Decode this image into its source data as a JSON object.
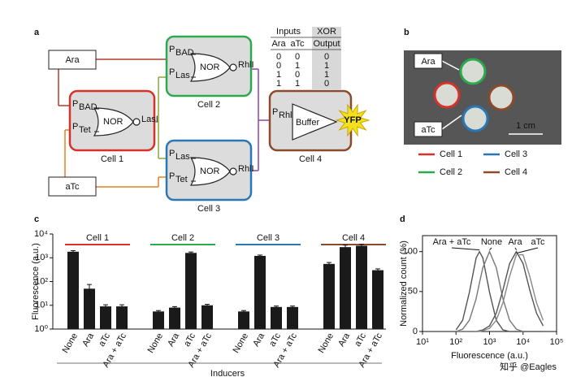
{
  "panel_labels": [
    "a",
    "b",
    "c",
    "d"
  ],
  "diagram": {
    "inputs": [
      "Ara",
      "aTc"
    ],
    "cells": [
      {
        "name": "Cell 1",
        "color": "#d7312a",
        "gate": "NOR",
        "promoters": [
          {
            "p": "P",
            "sub": "BAD"
          },
          {
            "p": "P",
            "sub": "Tet"
          }
        ],
        "output": "LasI"
      },
      {
        "name": "Cell 2",
        "color": "#2ca94f",
        "gate": "NOR",
        "promoters": [
          {
            "p": "P",
            "sub": "BAD"
          },
          {
            "p": "P",
            "sub": "Las"
          }
        ],
        "output": "RhlI"
      },
      {
        "name": "Cell 3",
        "color": "#2a77b5",
        "gate": "NOR",
        "promoters": [
          {
            "p": "P",
            "sub": "Las"
          },
          {
            "p": "P",
            "sub": "Tet"
          }
        ],
        "output": "RhlI"
      },
      {
        "name": "Cell 4",
        "color": "#8b4a2b",
        "gate": "Buffer",
        "promoters": [
          {
            "p": "P",
            "sub": "Rhl"
          }
        ],
        "output": "YFP"
      }
    ],
    "table": {
      "header": [
        "Inputs",
        "XOR"
      ],
      "columns": [
        "Ara",
        "aTc",
        "Output"
      ],
      "rows": [
        [
          "0",
          "0",
          "0"
        ],
        [
          "0",
          "1",
          "1"
        ],
        [
          "1",
          "0",
          "1"
        ],
        [
          "1",
          "1",
          "0"
        ]
      ]
    }
  },
  "photo": {
    "labels": [
      "Ara",
      "aTc"
    ],
    "scale": "1 cm"
  },
  "chart_data": [
    {
      "type": "bar",
      "y_label": "Fluorescence (a.u.)",
      "x_label": "Inducers",
      "log_y": true,
      "categories": [
        "None",
        "Ara",
        "aTc",
        "Ara + aTc"
      ],
      "ylim": [
        1,
        10000
      ],
      "yticks": [
        {
          "value": 1,
          "label": "10⁰"
        },
        {
          "value": 10,
          "label": "10¹"
        },
        {
          "value": 100,
          "label": "10²"
        },
        {
          "value": 1000,
          "label": "10³"
        },
        {
          "value": 10000,
          "label": "10⁴"
        }
      ],
      "color": "#1a1a1a",
      "groups": [
        {
          "name": "Cell 1",
          "color": "#d7312a",
          "values": [
            1800,
            50,
            9,
            9
          ],
          "errors": [
            200,
            25,
            1.5,
            1.5
          ]
        },
        {
          "name": "Cell 2",
          "color": "#2ca94f",
          "values": [
            5.5,
            8,
            1600,
            10
          ],
          "errors": [
            0.5,
            0.8,
            150,
            1
          ]
        },
        {
          "name": "Cell 3",
          "color": "#2a77b5",
          "values": [
            5.5,
            1200,
            8.5,
            8.5
          ],
          "errors": [
            0.5,
            100,
            0.8,
            0.8
          ]
        },
        {
          "name": "Cell 4",
          "color": "#8b4a2b",
          "values": [
            550,
            2800,
            3200,
            300
          ],
          "errors": [
            80,
            600,
            500,
            40
          ]
        }
      ]
    },
    {
      "type": "line",
      "y_label": "Normalized count (%)",
      "x_label": "Fluorescence (a.u.)",
      "log_x": true,
      "x": [
        100,
        158,
        251,
        398,
        501,
        631,
        1000,
        1585,
        2512,
        3981,
        6310,
        10000,
        15849,
        25119,
        39811
      ],
      "xlim": [
        10,
        100000
      ],
      "xticks": [
        {
          "value": 10,
          "label": "10¹"
        },
        {
          "value": 100,
          "label": "10²"
        },
        {
          "value": 1000,
          "label": "10³"
        },
        {
          "value": 10000,
          "label": "10⁴"
        },
        {
          "value": 100000,
          "label": "10⁵"
        }
      ],
      "ylim": [
        0,
        120
      ],
      "yticks": [
        0,
        50,
        100
      ],
      "series": [
        {
          "name": "Ara + aTc",
          "color": "#555555",
          "values": [
            2,
            14,
            49,
            92,
            100,
            92,
            49,
            14,
            2,
            0,
            0,
            0,
            0,
            0,
            0
          ]
        },
        {
          "name": "None",
          "color": "#777777",
          "values": [
            0,
            3,
            14,
            41,
            61,
            80,
            100,
            80,
            41,
            14,
            3,
            0,
            0,
            0,
            0
          ]
        },
        {
          "name": "Ara",
          "color": "#555555",
          "values": [
            0,
            0,
            0,
            0,
            1,
            2,
            7,
            23,
            52,
            85,
            100,
            85,
            52,
            23,
            7
          ]
        },
        {
          "name": "aTc",
          "color": "#888888",
          "values": [
            0,
            0,
            0,
            0,
            0,
            1,
            4,
            14,
            36,
            69,
            96,
            96,
            69,
            36,
            14
          ]
        }
      ]
    }
  ],
  "watermark": "知乎 @Eagles"
}
